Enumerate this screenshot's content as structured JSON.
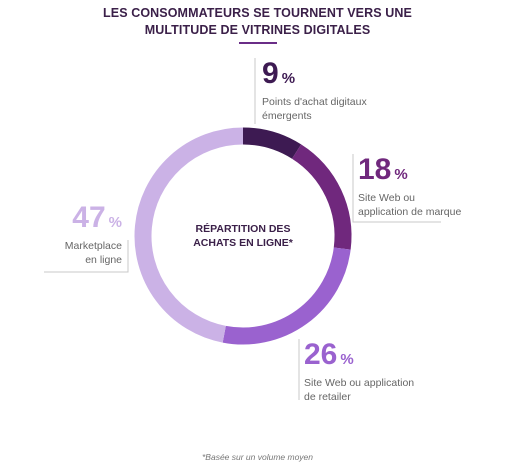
{
  "title": {
    "line1": "LES CONSOMMATEURS SE TOURNENT VERS UNE",
    "line2": "MULTITUDE DE VITRINES DIGITALES"
  },
  "center_label": {
    "line1": "RÉPARTITION DES",
    "line2": "ACHATS EN LIGNE*"
  },
  "footnote": "*Basée sur un volume moyen",
  "chart_data": {
    "type": "pie",
    "donut": true,
    "slices": [
      {
        "label": "Points d'achat digitaux émergents",
        "value": 9,
        "unit": "%",
        "label_lines": [
          "Points d'achat digitaux",
          "émergents"
        ],
        "color": "#3d1a52"
      },
      {
        "label": "Site Web ou application de marque",
        "value": 18,
        "unit": "%",
        "label_lines": [
          "Site Web ou",
          "application de marque"
        ],
        "color": "#70287d"
      },
      {
        "label": "Site Web ou application de retailer",
        "value": 26,
        "unit": "%",
        "label_lines": [
          "Site Web ou application",
          "de retailer"
        ],
        "color": "#9a62cf"
      },
      {
        "label": "Marketplace en ligne",
        "value": 47,
        "unit": "%",
        "label_lines": [
          "Marketplace",
          "en ligne"
        ],
        "color": "#cbb2e6"
      }
    ],
    "start_angle_deg": 0,
    "direction": "clockwise"
  }
}
